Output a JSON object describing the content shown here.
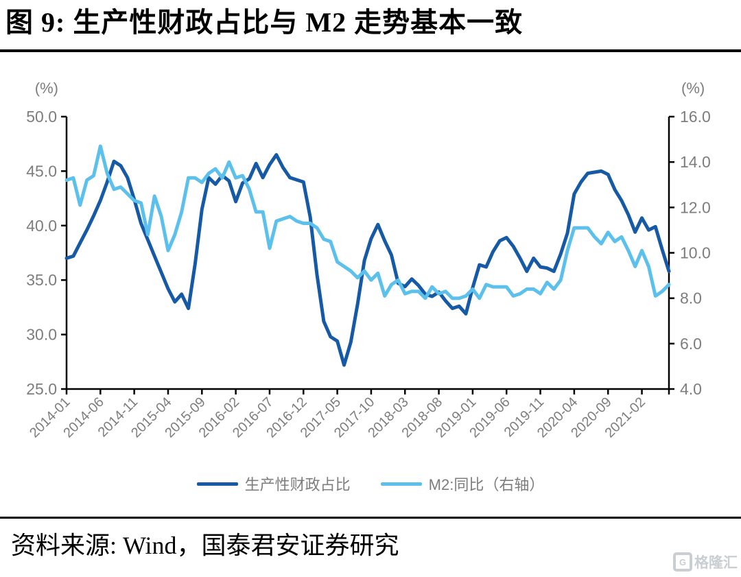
{
  "header": {
    "title": "图 9: 生产性财政占比与 M2 走势基本一致"
  },
  "legend": {
    "items": [
      {
        "label": "生产性财政占比",
        "color": "#1659A5"
      },
      {
        "label": "M2:同比（右轴）",
        "color": "#5BC0EC"
      }
    ]
  },
  "footer": {
    "source": "资料来源: Wind，国泰君安证券研究",
    "logo_text": "格隆汇"
  },
  "colors": {
    "dark_blue": "#1659A5",
    "light_blue": "#5BC0EC",
    "axis_text": "#7d7d7d",
    "axis_line": "#000000"
  },
  "chart_data": {
    "type": "line",
    "title": "图 9: 生产性财政占比与 M2 走势基本一致",
    "grid": false,
    "legend_position": "bottom",
    "x": [
      "2014-01",
      "2014-02",
      "2014-03",
      "2014-04",
      "2014-05",
      "2014-06",
      "2014-07",
      "2014-08",
      "2014-09",
      "2014-10",
      "2014-11",
      "2014-12",
      "2015-01",
      "2015-02",
      "2015-03",
      "2015-04",
      "2015-05",
      "2015-06",
      "2015-07",
      "2015-08",
      "2015-09",
      "2015-10",
      "2015-11",
      "2015-12",
      "2016-01",
      "2016-02",
      "2016-03",
      "2016-04",
      "2016-05",
      "2016-06",
      "2016-07",
      "2016-08",
      "2016-09",
      "2016-10",
      "2016-11",
      "2016-12",
      "2017-01",
      "2017-02",
      "2017-03",
      "2017-04",
      "2017-05",
      "2017-06",
      "2017-07",
      "2017-08",
      "2017-09",
      "2017-10",
      "2017-11",
      "2017-12",
      "2018-01",
      "2018-02",
      "2018-03",
      "2018-04",
      "2018-05",
      "2018-06",
      "2018-07",
      "2018-08",
      "2018-09",
      "2018-10",
      "2018-11",
      "2018-12",
      "2019-01",
      "2019-02",
      "2019-03",
      "2019-04",
      "2019-05",
      "2019-06",
      "2019-07",
      "2019-08",
      "2019-09",
      "2019-10",
      "2019-11",
      "2019-12",
      "2020-01",
      "2020-02",
      "2020-03",
      "2020-04",
      "2020-05",
      "2020-06",
      "2020-07",
      "2020-08",
      "2020-09",
      "2020-10",
      "2020-11",
      "2020-12",
      "2021-01",
      "2021-02",
      "2021-03",
      "2021-04",
      "2021-05",
      "2021-06"
    ],
    "x_tick_labels": [
      "2014-01",
      "2014-06",
      "2014-11",
      "2015-04",
      "2015-09",
      "2016-02",
      "2016-07",
      "2016-12",
      "2017-05",
      "2017-10",
      "2018-03",
      "2018-08",
      "2019-01",
      "2019-06",
      "2019-11",
      "2020-04",
      "2020-09",
      "2021-02"
    ],
    "x_tick_every": 5,
    "left_axis": {
      "unit": "(%)",
      "min": 25,
      "max": 50,
      "step": 5
    },
    "right_axis": {
      "unit": "(%)",
      "min": 4,
      "max": 16,
      "step": 2
    },
    "series": [
      {
        "name": "生产性财政占比",
        "axis": "left",
        "color": "#1659A5",
        "values": [
          37.0,
          37.2,
          38.4,
          39.6,
          40.9,
          42.3,
          44.0,
          45.9,
          45.5,
          44.4,
          42.4,
          40.2,
          38.7,
          37.2,
          35.7,
          34.2,
          33.0,
          33.7,
          32.4,
          36.5,
          41.5,
          44.4,
          43.8,
          44.6,
          44.1,
          42.2,
          43.9,
          44.3,
          45.7,
          44.4,
          45.6,
          46.5,
          45.3,
          44.4,
          44.2,
          44.0,
          40.8,
          35.5,
          31.2,
          29.8,
          29.4,
          27.2,
          29.3,
          32.8,
          36.8,
          38.8,
          40.1,
          38.6,
          37.3,
          34.7,
          34.4,
          35.1,
          34.5,
          33.7,
          33.5,
          33.9,
          33.1,
          32.4,
          32.6,
          31.9,
          34.3,
          36.4,
          36.2,
          37.6,
          38.6,
          38.9,
          38.1,
          37.0,
          35.8,
          37.0,
          36.2,
          36.1,
          35.8,
          37.4,
          39.3,
          42.9,
          44.0,
          44.8,
          44.9,
          45.0,
          44.7,
          43.3,
          42.3,
          41.0,
          39.4,
          40.7,
          39.6,
          39.9,
          37.8,
          35.8
        ]
      },
      {
        "name": "M2:同比（右轴）",
        "axis": "right",
        "color": "#5BC0EC",
        "values": [
          13.2,
          13.3,
          12.1,
          13.2,
          13.4,
          14.7,
          13.5,
          12.8,
          12.9,
          12.6,
          12.3,
          12.2,
          10.8,
          12.5,
          11.6,
          10.1,
          10.8,
          11.8,
          13.3,
          13.3,
          13.1,
          13.5,
          13.7,
          13.3,
          14.0,
          13.3,
          13.4,
          12.8,
          11.8,
          11.8,
          10.2,
          11.4,
          11.5,
          11.6,
          11.4,
          11.3,
          11.3,
          11.1,
          10.6,
          10.5,
          9.6,
          9.4,
          9.2,
          8.9,
          9.2,
          8.8,
          9.1,
          8.1,
          8.6,
          8.8,
          8.2,
          8.3,
          8.3,
          8.0,
          8.5,
          8.2,
          8.3,
          8.0,
          8.0,
          8.1,
          8.4,
          8.0,
          8.6,
          8.5,
          8.5,
          8.5,
          8.1,
          8.2,
          8.4,
          8.4,
          8.2,
          8.7,
          8.4,
          8.8,
          10.1,
          11.1,
          11.1,
          11.1,
          10.7,
          10.4,
          10.9,
          10.5,
          10.7,
          10.1,
          9.4,
          10.1,
          9.4,
          8.1,
          8.3,
          8.6
        ]
      }
    ]
  }
}
